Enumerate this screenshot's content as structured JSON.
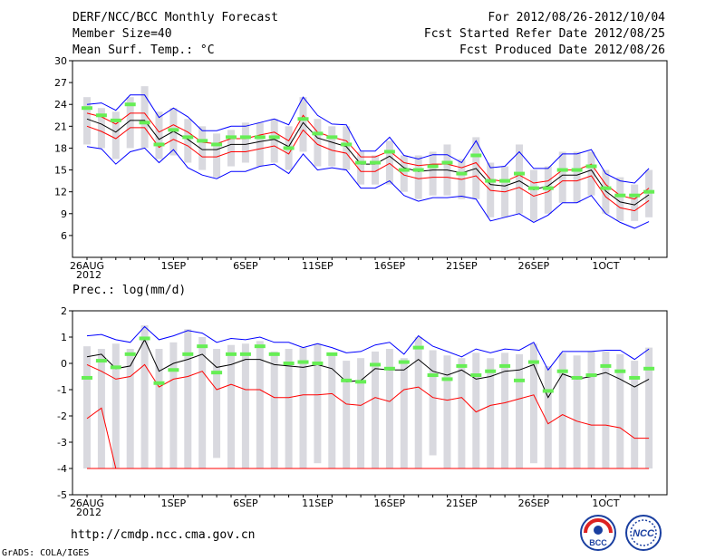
{
  "header": {
    "title": "DERF/NCC/BCC Monthly Forecast",
    "member_size": "Member Size=40",
    "variable": "Mean Surf. Temp.: °C",
    "period": "For 2012/08/26-2012/10/04",
    "start_date": "Fcst Started Refer Date 2012/08/25",
    "produced_date": "Fcst Produced Date 2012/08/26"
  },
  "footer": {
    "url": "http://cmdp.ncc.cma.gov.cn",
    "credit": "GrADS: COLA/IGES",
    "logo_bcc": "BCC",
    "logo_ncc": "NCC"
  },
  "colors": {
    "max": "#0000ff",
    "min": "#0000ff",
    "p_upper": "#ff0000",
    "p_lower": "#ff0000",
    "mean": "#000000",
    "bar": "#d9d9df",
    "median": "#66ee55"
  },
  "chart_data": [
    {
      "type": "line",
      "label": "Mean Surf. Temp.: °C",
      "x_labels": [
        {
          "i": 0,
          "text": "26AUG"
        },
        {
          "i": 0,
          "text": "2012",
          "sub": true
        },
        {
          "i": 6,
          "text": "1SEP"
        },
        {
          "i": 11,
          "text": "6SEP"
        },
        {
          "i": 16,
          "text": "11SEP"
        },
        {
          "i": 21,
          "text": "16SEP"
        },
        {
          "i": 26,
          "text": "21SEP"
        },
        {
          "i": 31,
          "text": "26SEP"
        },
        {
          "i": 36,
          "text": "1OCT"
        }
      ],
      "ylim": [
        3,
        30
      ],
      "yticks": [
        6,
        9,
        12,
        15,
        18,
        21,
        24,
        27,
        30
      ],
      "series": [
        {
          "name": "max",
          "color": "#0000ff",
          "values": [
            24.0,
            24.2,
            23.2,
            25.3,
            25.3,
            22.2,
            23.5,
            22.3,
            20.4,
            20.4,
            21.0,
            21.0,
            21.5,
            22.0,
            21.2,
            25.0,
            22.5,
            21.3,
            21.2,
            17.6,
            17.6,
            19.5,
            17.0,
            16.5,
            17.1,
            17.1,
            16.0,
            19.0,
            15.3,
            15.5,
            17.5,
            15.2,
            15.2,
            17.2,
            17.2,
            17.8,
            14.5,
            13.5,
            13.2,
            15.2
          ]
        },
        {
          "name": "p_upper",
          "color": "#ff0000",
          "values": [
            22.8,
            22.3,
            21.3,
            22.8,
            22.8,
            20.2,
            21.2,
            20.2,
            18.8,
            18.6,
            19.3,
            19.3,
            19.8,
            20.2,
            19.0,
            22.5,
            20.2,
            19.5,
            19.0,
            16.8,
            16.8,
            17.6,
            16.0,
            15.6,
            15.8,
            15.8,
            15.3,
            16.0,
            13.7,
            13.4,
            14.3,
            13.2,
            13.5,
            15.0,
            15.0,
            15.8,
            13.0,
            11.5,
            11.0,
            12.5
          ]
        },
        {
          "name": "mean",
          "color": "#000000",
          "values": [
            22.0,
            21.3,
            20.2,
            21.8,
            21.8,
            19.2,
            20.3,
            19.2,
            17.8,
            17.8,
            18.5,
            18.5,
            18.9,
            19.2,
            18.2,
            21.5,
            19.4,
            18.8,
            18.2,
            15.8,
            15.8,
            16.9,
            15.3,
            14.8,
            15.0,
            15.0,
            14.6,
            15.2,
            13.0,
            12.8,
            13.5,
            12.3,
            12.8,
            14.3,
            14.3,
            15.0,
            12.1,
            10.6,
            10.2,
            11.6
          ]
        },
        {
          "name": "p_lower",
          "color": "#ff0000",
          "values": [
            21.0,
            20.3,
            19.3,
            20.8,
            20.8,
            18.1,
            19.2,
            18.3,
            16.8,
            16.8,
            17.5,
            17.5,
            17.9,
            18.3,
            17.2,
            20.5,
            18.5,
            17.7,
            17.3,
            14.8,
            14.8,
            15.9,
            14.3,
            13.8,
            14.0,
            14.0,
            13.7,
            14.2,
            12.2,
            12.0,
            12.6,
            11.4,
            12.0,
            13.5,
            13.5,
            14.2,
            11.3,
            9.8,
            9.4,
            10.8
          ]
        },
        {
          "name": "min",
          "color": "#0000ff",
          "values": [
            18.2,
            17.9,
            15.8,
            17.5,
            18.0,
            16.0,
            17.8,
            15.3,
            14.3,
            13.8,
            14.8,
            14.8,
            15.5,
            15.8,
            14.5,
            17.2,
            15.0,
            15.3,
            15.0,
            12.5,
            12.5,
            13.5,
            11.5,
            10.7,
            11.2,
            11.2,
            11.4,
            11.0,
            8.0,
            8.5,
            9.0,
            7.8,
            8.8,
            10.5,
            10.5,
            11.5,
            9.0,
            7.8,
            7.0,
            7.9
          ]
        }
      ],
      "bars": {
        "low": [
          18.5,
          18.0,
          16.5,
          18.0,
          18.0,
          16.5,
          17.0,
          16.0,
          15.0,
          14.0,
          15.5,
          16.0,
          15.5,
          16.0,
          15.0,
          17.5,
          15.5,
          15.5,
          15.0,
          13.0,
          13.0,
          13.0,
          12.0,
          11.0,
          11.5,
          11.5,
          11.0,
          11.0,
          8.5,
          8.5,
          9.0,
          8.0,
          9.0,
          10.5,
          10.5,
          11.5,
          9.0,
          8.0,
          8.0,
          8.5
        ],
        "high": [
          25.0,
          23.5,
          23.0,
          25.0,
          26.5,
          23.0,
          23.5,
          22.0,
          21.0,
          20.0,
          20.5,
          21.5,
          21.5,
          22.0,
          21.0,
          25.0,
          22.0,
          21.0,
          21.0,
          17.5,
          17.0,
          19.0,
          17.0,
          17.0,
          17.5,
          18.5,
          16.5,
          19.5,
          16.0,
          15.5,
          18.5,
          15.0,
          15.5,
          17.5,
          17.5,
          17.5,
          15.0,
          14.0,
          13.0,
          15.0
        ]
      },
      "median": [
        23.5,
        22.5,
        21.8,
        24.0,
        21.5,
        18.5,
        20.5,
        19.5,
        19.0,
        18.5,
        19.5,
        19.5,
        19.5,
        19.5,
        18.0,
        22.0,
        20.0,
        19.5,
        18.5,
        16.0,
        16.0,
        17.5,
        15.0,
        15.0,
        15.5,
        16.0,
        14.5,
        17.0,
        13.5,
        13.5,
        14.5,
        12.5,
        12.5,
        15.0,
        15.0,
        15.5,
        12.5,
        11.5,
        11.5,
        12.0
      ]
    },
    {
      "type": "line",
      "label": "Prec.: log(mm/d)",
      "x_labels": [
        {
          "i": 0,
          "text": "26AUG"
        },
        {
          "i": 0,
          "text": "2012",
          "sub": true
        },
        {
          "i": 6,
          "text": "1SEP"
        },
        {
          "i": 11,
          "text": "6SEP"
        },
        {
          "i": 16,
          "text": "11SEP"
        },
        {
          "i": 21,
          "text": "16SEP"
        },
        {
          "i": 26,
          "text": "21SEP"
        },
        {
          "i": 31,
          "text": "26SEP"
        },
        {
          "i": 36,
          "text": "1OCT"
        }
      ],
      "ylim": [
        -5,
        2
      ],
      "yticks": [
        -5,
        -4,
        -3,
        -2,
        -1,
        0,
        1,
        2
      ],
      "series": [
        {
          "name": "max",
          "color": "#0000ff",
          "values": [
            1.05,
            1.1,
            0.9,
            0.8,
            1.4,
            0.9,
            1.05,
            1.25,
            1.15,
            0.8,
            0.95,
            0.9,
            1.0,
            0.8,
            0.8,
            0.6,
            0.75,
            0.6,
            0.4,
            0.45,
            0.7,
            0.8,
            0.35,
            1.05,
            0.65,
            0.45,
            0.25,
            0.55,
            0.4,
            0.55,
            0.5,
            0.8,
            -0.25,
            0.45,
            0.45,
            0.45,
            0.5,
            0.5,
            0.15,
            0.55
          ]
        },
        {
          "name": "mean",
          "color": "#000000",
          "values": [
            0.25,
            0.35,
            -0.2,
            -0.1,
            0.9,
            -0.3,
            0.0,
            0.15,
            0.35,
            -0.15,
            -0.05,
            0.15,
            0.15,
            -0.05,
            -0.1,
            -0.15,
            -0.05,
            -0.2,
            -0.7,
            -0.65,
            -0.2,
            -0.25,
            -0.25,
            0.15,
            -0.3,
            -0.45,
            -0.25,
            -0.6,
            -0.5,
            -0.3,
            -0.25,
            -0.05,
            -1.3,
            -0.4,
            -0.6,
            -0.5,
            -0.35,
            -0.6,
            -0.9,
            -0.6
          ]
        },
        {
          "name": "p_lower",
          "color": "#ff0000",
          "values": [
            -2.1,
            -1.7,
            -4.0,
            null,
            null,
            null,
            null,
            null,
            null,
            null,
            null,
            null,
            null,
            null,
            null,
            null,
            null,
            null,
            null,
            null,
            null,
            null,
            null,
            null,
            null,
            null,
            null,
            null,
            null,
            null,
            null,
            null,
            null,
            null,
            null,
            null,
            null,
            null,
            null,
            null
          ]
        },
        {
          "name": "min",
          "color": "#ff0000",
          "values": [
            -0.05,
            -0.3,
            -0.6,
            -0.5,
            -0.05,
            -0.9,
            -0.6,
            -0.5,
            -0.3,
            -1.0,
            -0.8,
            -1.0,
            -1.0,
            -1.3,
            -1.3,
            -1.2,
            -1.2,
            -1.15,
            -1.55,
            -1.6,
            -1.3,
            -1.45,
            -1.0,
            -0.9,
            -1.3,
            -1.4,
            -1.3,
            -1.85,
            -1.6,
            -1.5,
            -1.35,
            -1.2,
            -2.3,
            -1.95,
            -2.2,
            -2.35,
            -2.35,
            -2.45,
            -2.85,
            -2.85
          ]
        }
      ],
      "floor": -4.0,
      "bars": {
        "low": [
          -4.0,
          -4.0,
          -4.0,
          -4.0,
          -4.0,
          -4.0,
          -4.0,
          -4.0,
          -4.0,
          -3.6,
          -4.0,
          -4.0,
          -4.0,
          -4.0,
          -4.0,
          -4.0,
          -3.8,
          -4.0,
          -4.0,
          -4.0,
          -4.0,
          -4.0,
          -4.0,
          -4.0,
          -3.5,
          -4.0,
          -4.0,
          -4.0,
          -4.0,
          -4.0,
          -4.0,
          -3.8,
          -4.0,
          -4.0,
          -4.0,
          -4.0,
          -4.0,
          -4.0,
          -4.0,
          -4.0
        ],
        "high": [
          0.65,
          0.55,
          0.75,
          0.55,
          1.45,
          0.55,
          0.8,
          1.3,
          1.0,
          0.55,
          0.7,
          0.75,
          0.85,
          0.45,
          0.55,
          0.6,
          0.75,
          0.4,
          0.1,
          0.2,
          0.45,
          0.55,
          0.2,
          1.0,
          0.5,
          0.3,
          0.2,
          0.4,
          0.2,
          0.4,
          0.35,
          0.75,
          -0.1,
          0.4,
          0.3,
          0.45,
          0.45,
          0.35,
          0.1,
          0.6
        ]
      },
      "median": [
        -0.55,
        0.1,
        -0.15,
        0.35,
        0.95,
        -0.75,
        -0.25,
        0.35,
        0.65,
        -0.35,
        0.35,
        0.35,
        0.65,
        0.35,
        0.0,
        0.05,
        0.0,
        0.35,
        -0.65,
        -0.7,
        -0.05,
        -0.2,
        0.05,
        0.6,
        -0.45,
        -0.6,
        -0.1,
        -0.45,
        -0.3,
        -0.1,
        -0.65,
        0.05,
        -1.05,
        -0.3,
        -0.55,
        -0.45,
        -0.1,
        -0.3,
        -0.55,
        -0.2
      ]
    }
  ]
}
